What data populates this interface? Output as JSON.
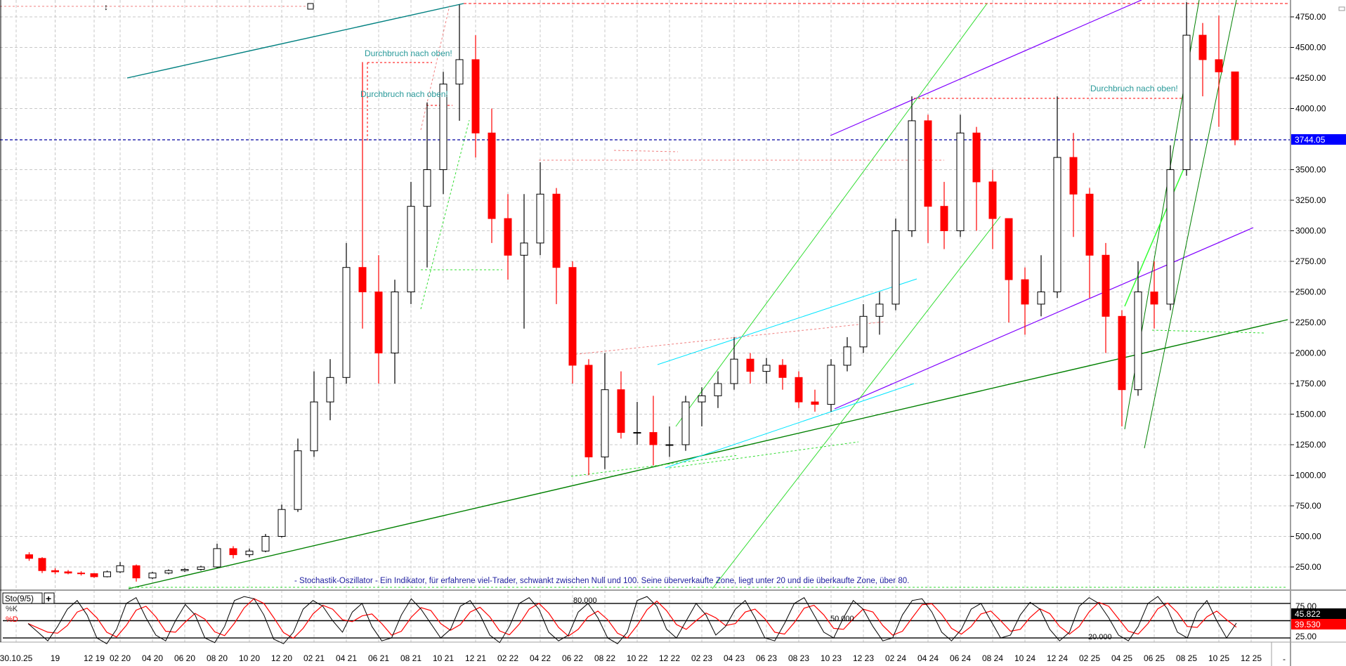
{
  "chart_data": [
    {
      "type": "candlestick",
      "title": "",
      "ylim": [
        0,
        4750
      ],
      "y_ticks": [
        "4750.00",
        "4500.00",
        "4250.00",
        "4000.00",
        "3500.00",
        "3250.00",
        "3000.00",
        "2750.00",
        "2500.00",
        "2250.00",
        "2000.00",
        "1750.00",
        "1500.00",
        "1250.00",
        "1000.00",
        "750.00",
        "500.00",
        "250.00"
      ],
      "y_tick_values": [
        4750,
        4500,
        4250,
        4000,
        3500,
        3250,
        3000,
        2750,
        2500,
        2250,
        2000,
        1750,
        1500,
        1250,
        1000,
        750,
        500,
        250
      ],
      "grid": true,
      "last_price": 3744.05,
      "last_price_label": "3744.05",
      "last_price_color": "#0000ff",
      "up_color": "#000000",
      "down_color": "#ff0000",
      "x_ticks": [
        {
          "label": "30.10.25",
          "date": "2019-06"
        },
        {
          "label": "19",
          "date": "2019-09"
        },
        {
          "label": "12 19",
          "date": "2019-12"
        },
        {
          "label": "02 20",
          "date": "2020-02"
        },
        {
          "label": "04 20",
          "date": "2020-04"
        },
        {
          "label": "06 20",
          "date": "2020-06"
        },
        {
          "label": "08 20",
          "date": "2020-08"
        },
        {
          "label": "10 20",
          "date": "2020-10"
        },
        {
          "label": "12 20",
          "date": "2020-12"
        },
        {
          "label": "02 21",
          "date": "2021-02"
        },
        {
          "label": "04 21",
          "date": "2021-04"
        },
        {
          "label": "06 21",
          "date": "2021-06"
        },
        {
          "label": "08 21",
          "date": "2021-08"
        },
        {
          "label": "10 21",
          "date": "2021-10"
        },
        {
          "label": "12 21",
          "date": "2021-12"
        },
        {
          "label": "02 22",
          "date": "2022-02"
        },
        {
          "label": "04 22",
          "date": "2022-04"
        },
        {
          "label": "06 22",
          "date": "2022-06"
        },
        {
          "label": "08 22",
          "date": "2022-08"
        },
        {
          "label": "10 22",
          "date": "2022-10"
        },
        {
          "label": "12 22",
          "date": "2022-12"
        },
        {
          "label": "02 23",
          "date": "2023-02"
        },
        {
          "label": "04 23",
          "date": "2023-04"
        },
        {
          "label": "06 23",
          "date": "2023-06"
        },
        {
          "label": "08 23",
          "date": "2023-08"
        },
        {
          "label": "10 23",
          "date": "2023-10"
        },
        {
          "label": "12 23",
          "date": "2023-12"
        },
        {
          "label": "02 24",
          "date": "2024-02"
        },
        {
          "label": "04 24",
          "date": "2024-04"
        },
        {
          "label": "06 24",
          "date": "2024-06"
        },
        {
          "label": "08 24",
          "date": "2024-08"
        },
        {
          "label": "10 24",
          "date": "2024-10"
        },
        {
          "label": "12 24",
          "date": "2024-12"
        },
        {
          "label": "02 25",
          "date": "2025-02"
        },
        {
          "label": "04 25",
          "date": "2025-04"
        },
        {
          "label": "06 25",
          "date": "2025-06"
        },
        {
          "label": "08 25",
          "date": "2025-08"
        },
        {
          "label": "10 25",
          "date": "2025-10"
        },
        {
          "label": "12 25",
          "date": "2025-12"
        }
      ],
      "x_axis_end_label": "-",
      "ohlc": [
        [
          "2019-07",
          350,
          370,
          300,
          320
        ],
        [
          "2019-08",
          320,
          330,
          200,
          220
        ],
        [
          "2019-09",
          220,
          240,
          190,
          210
        ],
        [
          "2019-10",
          210,
          225,
          190,
          200
        ],
        [
          "2019-11",
          200,
          215,
          180,
          195
        ],
        [
          "2019-12",
          195,
          200,
          160,
          170
        ],
        [
          "2020-01",
          170,
          220,
          165,
          210
        ],
        [
          "2020-02",
          210,
          290,
          200,
          260
        ],
        [
          "2020-03",
          260,
          270,
          130,
          160
        ],
        [
          "2020-04",
          160,
          210,
          150,
          200
        ],
        [
          "2020-05",
          200,
          230,
          190,
          220
        ],
        [
          "2020-06",
          220,
          240,
          210,
          230
        ],
        [
          "2020-07",
          230,
          260,
          220,
          250
        ],
        [
          "2020-08",
          250,
          440,
          240,
          400
        ],
        [
          "2020-09",
          400,
          420,
          320,
          350
        ],
        [
          "2020-10",
          350,
          400,
          330,
          380
        ],
        [
          "2020-11",
          380,
          520,
          370,
          500
        ],
        [
          "2020-12",
          500,
          760,
          490,
          720
        ],
        [
          "2021-01",
          720,
          1300,
          700,
          1200
        ],
        [
          "2021-02",
          1200,
          1850,
          1150,
          1600
        ],
        [
          "2021-03",
          1600,
          1950,
          1450,
          1800
        ],
        [
          "2021-04",
          1800,
          2900,
          1750,
          2700
        ],
        [
          "2021-05",
          2700,
          4380,
          2200,
          2500
        ],
        [
          "2021-06",
          2500,
          2800,
          1750,
          2000
        ],
        [
          "2021-07",
          2000,
          2600,
          1750,
          2500
        ],
        [
          "2021-08",
          2500,
          3400,
          2400,
          3200
        ],
        [
          "2021-09",
          3200,
          4050,
          2700,
          3500
        ],
        [
          "2021-10",
          3500,
          4300,
          3300,
          4200
        ],
        [
          "2021-11",
          4200,
          4850,
          3900,
          4400
        ],
        [
          "2021-12",
          4400,
          4600,
          3600,
          3800
        ],
        [
          "2022-01",
          3800,
          4000,
          2900,
          3100
        ],
        [
          "2022-02",
          3100,
          3300,
          2600,
          2800
        ],
        [
          "2022-03",
          2800,
          3300,
          2200,
          2900
        ],
        [
          "2022-04",
          2900,
          3560,
          2800,
          3300
        ],
        [
          "2022-05",
          3300,
          3350,
          2400,
          2700
        ],
        [
          "2022-06",
          2700,
          2750,
          1750,
          1900
        ],
        [
          "2022-07",
          1900,
          1950,
          1000,
          1150
        ],
        [
          "2022-08",
          1150,
          2000,
          1050,
          1700
        ],
        [
          "2022-09",
          1700,
          1850,
          1300,
          1350
        ],
        [
          "2022-10",
          1350,
          1600,
          1250,
          1350
        ],
        [
          "2022-11",
          1350,
          1650,
          1080,
          1250
        ],
        [
          "2022-12",
          1250,
          1400,
          1150,
          1250
        ],
        [
          "2023-01",
          1250,
          1650,
          1200,
          1600
        ],
        [
          "2023-02",
          1600,
          1720,
          1400,
          1650
        ],
        [
          "2023-03",
          1650,
          1850,
          1550,
          1750
        ],
        [
          "2023-04",
          1750,
          2130,
          1700,
          1950
        ],
        [
          "2023-05",
          1950,
          2000,
          1750,
          1850
        ],
        [
          "2023-06",
          1850,
          1960,
          1750,
          1900
        ],
        [
          "2023-07",
          1900,
          1950,
          1700,
          1800
        ],
        [
          "2023-08",
          1800,
          1850,
          1550,
          1600
        ],
        [
          "2023-09",
          1600,
          1700,
          1520,
          1580
        ],
        [
          "2023-10",
          1580,
          1950,
          1520,
          1900
        ],
        [
          "2023-11",
          1900,
          2130,
          1850,
          2050
        ],
        [
          "2023-12",
          2050,
          2400,
          2000,
          2300
        ],
        [
          "2024-01",
          2300,
          2500,
          2150,
          2400
        ],
        [
          "2024-02",
          2400,
          3100,
          2350,
          3000
        ],
        [
          "2024-03",
          3000,
          4100,
          2950,
          3900
        ],
        [
          "2024-04",
          3900,
          3950,
          2900,
          3200
        ],
        [
          "2024-05",
          3200,
          3400,
          2850,
          3000
        ],
        [
          "2024-06",
          3000,
          3950,
          2950,
          3800
        ],
        [
          "2024-07",
          3800,
          3850,
          3000,
          3400
        ],
        [
          "2024-08",
          3400,
          3500,
          2850,
          3100
        ],
        [
          "2024-09",
          3100,
          3100,
          2250,
          2600
        ],
        [
          "2024-10",
          2600,
          2700,
          2150,
          2400
        ],
        [
          "2024-11",
          2400,
          2800,
          2300,
          2500
        ],
        [
          "2024-12",
          2500,
          4100,
          2450,
          3600
        ],
        [
          "2025-01",
          3600,
          3800,
          2950,
          3300
        ],
        [
          "2025-02",
          3300,
          3350,
          2450,
          2800
        ],
        [
          "2025-03",
          2800,
          2900,
          2000,
          2300
        ],
        [
          "2025-04",
          2300,
          2350,
          1400,
          1700
        ],
        [
          "2025-05",
          1700,
          2750,
          1650,
          2500
        ],
        [
          "2025-06",
          2500,
          2750,
          2200,
          2400
        ],
        [
          "2025-07",
          2400,
          3700,
          2350,
          3500
        ],
        [
          "2025-08",
          3500,
          4870,
          3450,
          4600
        ],
        [
          "2025-09",
          4600,
          4700,
          4100,
          4400
        ],
        [
          "2025-10",
          4400,
          4760,
          3850,
          4300
        ],
        [
          "2025-11",
          4300,
          4300,
          3700,
          3744.05
        ]
      ],
      "annotations": [
        "Durchbruch nach oben!",
        "Durchbruch nach oben!",
        "Durchbruch nach oben!"
      ],
      "note": "- Stochastik-Oszillator - Ein Indikator, für erfahrene viel-Trader, schwankt zwischen Null und 100. Seine überverkaufte Zone, liegt unter 20 und die überkaufte Zone, über 80."
    },
    {
      "type": "line",
      "title": "Sto(9/5)",
      "ylim": [
        0,
        100
      ],
      "y_ticks": [
        "75.00",
        "25.00"
      ],
      "y_tick_values": [
        75,
        25
      ],
      "levels": [
        80,
        50,
        20
      ],
      "level_labels": [
        "80.000",
        "50.000",
        "20.000"
      ],
      "series": [
        {
          "name": "%K",
          "color": "#000000",
          "last_label": "45.822",
          "values": [
            45,
            30,
            15,
            40,
            70,
            85,
            60,
            20,
            10,
            35,
            80,
            90,
            55,
            25,
            15,
            50,
            78,
            60,
            20,
            12,
            40,
            85,
            92,
            88,
            60,
            18,
            10,
            30,
            70,
            85,
            75,
            50,
            30,
            65,
            80,
            40,
            15,
            20,
            60,
            88,
            70,
            45,
            20,
            35,
            75,
            85,
            60,
            25,
            12,
            40,
            80,
            90,
            70,
            30,
            15,
            25,
            65,
            80,
            55,
            20,
            10,
            30,
            85,
            92,
            75,
            35,
            20,
            50,
            80,
            60,
            25,
            40,
            70,
            85,
            55,
            20,
            15,
            45,
            80,
            90,
            60,
            30,
            20,
            55,
            85,
            70,
            40,
            15,
            20,
            60,
            85,
            88,
            65,
            30,
            15,
            35,
            70,
            80,
            50,
            20,
            25,
            60,
            82,
            70,
            35,
            15,
            30,
            75,
            90,
            80,
            55,
            25,
            15,
            40,
            80,
            92,
            70,
            30,
            20,
            65,
            85,
            50,
            20,
            45.822
          ]
        },
        {
          "name": "%D",
          "color": "#ff0000",
          "last_label": "39.530"
        }
      ]
    }
  ],
  "indicator_panel": {
    "label": "Sto(9/5)",
    "k_label": "%K",
    "d_label": "%D",
    "add_button": "+"
  }
}
